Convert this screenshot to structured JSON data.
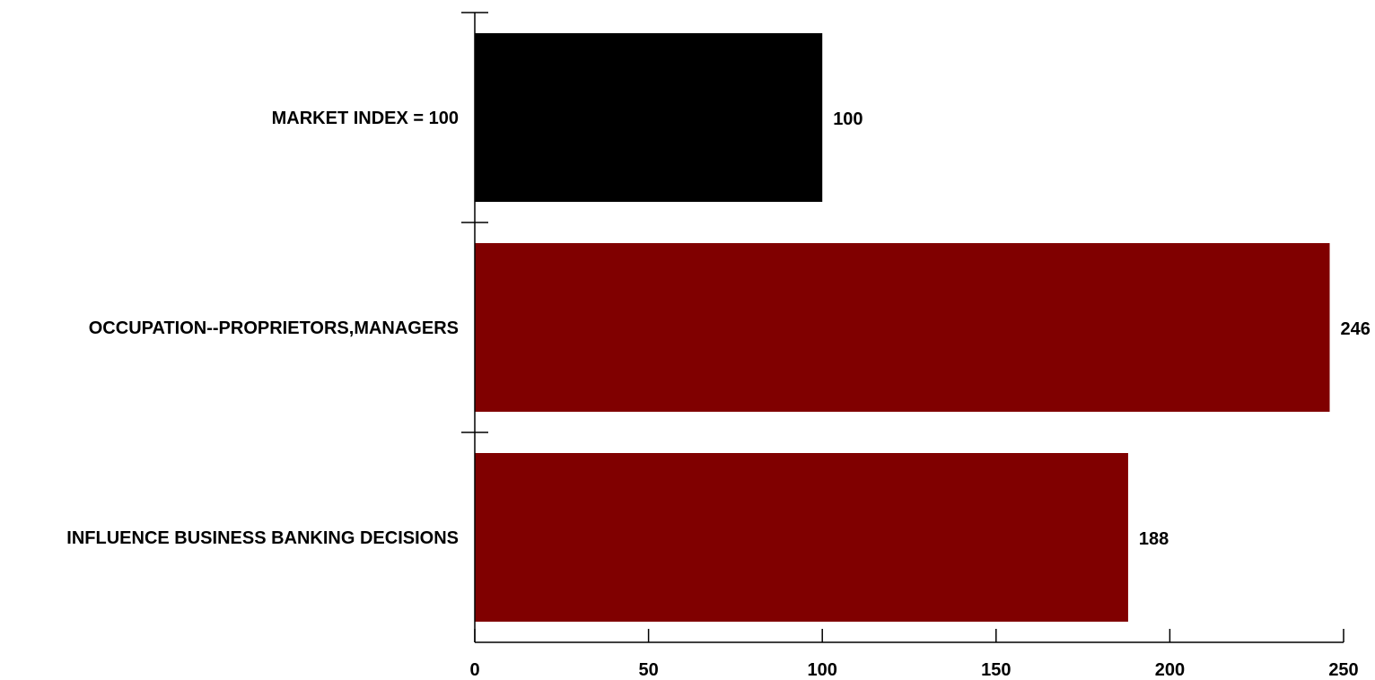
{
  "chart_data": {
    "type": "bar",
    "orientation": "horizontal",
    "categories": [
      "MARKET INDEX = 100",
      "OCCUPATION--PROPRIETORS,MANAGERS",
      "INFLUENCE BUSINESS BANKING DECISIONS"
    ],
    "values": [
      100,
      246,
      188
    ],
    "value_labels": [
      "100",
      "246",
      "188"
    ],
    "bar_colors": [
      "#000000",
      "#800000",
      "#800000"
    ],
    "title": "",
    "xlabel": "",
    "ylabel": "",
    "xlim": [
      0,
      250
    ],
    "x_ticks": [
      0,
      50,
      100,
      150,
      200,
      250
    ],
    "x_tick_labels": [
      "0",
      "50",
      "100",
      "150",
      "200",
      "250"
    ],
    "grid": false,
    "legend": "none"
  }
}
